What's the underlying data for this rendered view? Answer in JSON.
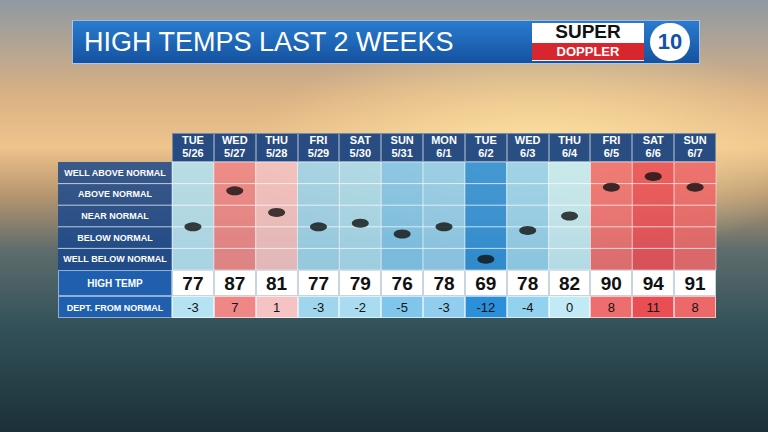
{
  "chart_data": {
    "type": "scatter",
    "title": "HIGH TEMPS LAST 2 WEEKS",
    "logo": [
      "SUPER",
      "DOPPLER",
      "10"
    ],
    "categories": [
      "5/26",
      "5/27",
      "5/28",
      "5/29",
      "5/30",
      "5/31",
      "6/1",
      "6/2",
      "6/3",
      "6/4",
      "6/5",
      "6/6",
      "6/7"
    ],
    "weekdays": [
      "TUE",
      "WED",
      "THU",
      "FRI",
      "SAT",
      "SUN",
      "MON",
      "TUE",
      "WED",
      "THU",
      "FRI",
      "SAT",
      "SUN"
    ],
    "values": [
      -3,
      7,
      1,
      -3,
      -2,
      -5,
      -3,
      -12,
      -4,
      0,
      8,
      11,
      8
    ],
    "values_label": "DEPT. FROM NORMAL",
    "high_temps": [
      77,
      87,
      81,
      77,
      79,
      76,
      78,
      69,
      78,
      82,
      90,
      94,
      91
    ],
    "high_temps_label": "HIGH TEMP",
    "ylim": [
      -15,
      15
    ],
    "yticks": [
      {
        "value": -12,
        "label": "WELL BELOW NORMAL"
      },
      {
        "value": -6,
        "label": "BELOW NORMAL"
      },
      {
        "value": 0,
        "label": "NEAR NORMAL"
      },
      {
        "value": 6,
        "label": "ABOVE NORMAL"
      },
      {
        "value": 12,
        "label": "WELL ABOVE NORMAL"
      }
    ],
    "color": "#111111",
    "marker": "circle",
    "colors": [
      "#b5e3f3",
      "#f08787",
      "#f6c3c4",
      "#9fd6ee",
      "#a9dcf0",
      "#80c6ec",
      "#90cdee",
      "#2b8fd9",
      "#93d2ef",
      "#c2eaf6",
      "#ee6e6f",
      "#e94e55",
      "#ed6869"
    ],
    "grid": true
  }
}
